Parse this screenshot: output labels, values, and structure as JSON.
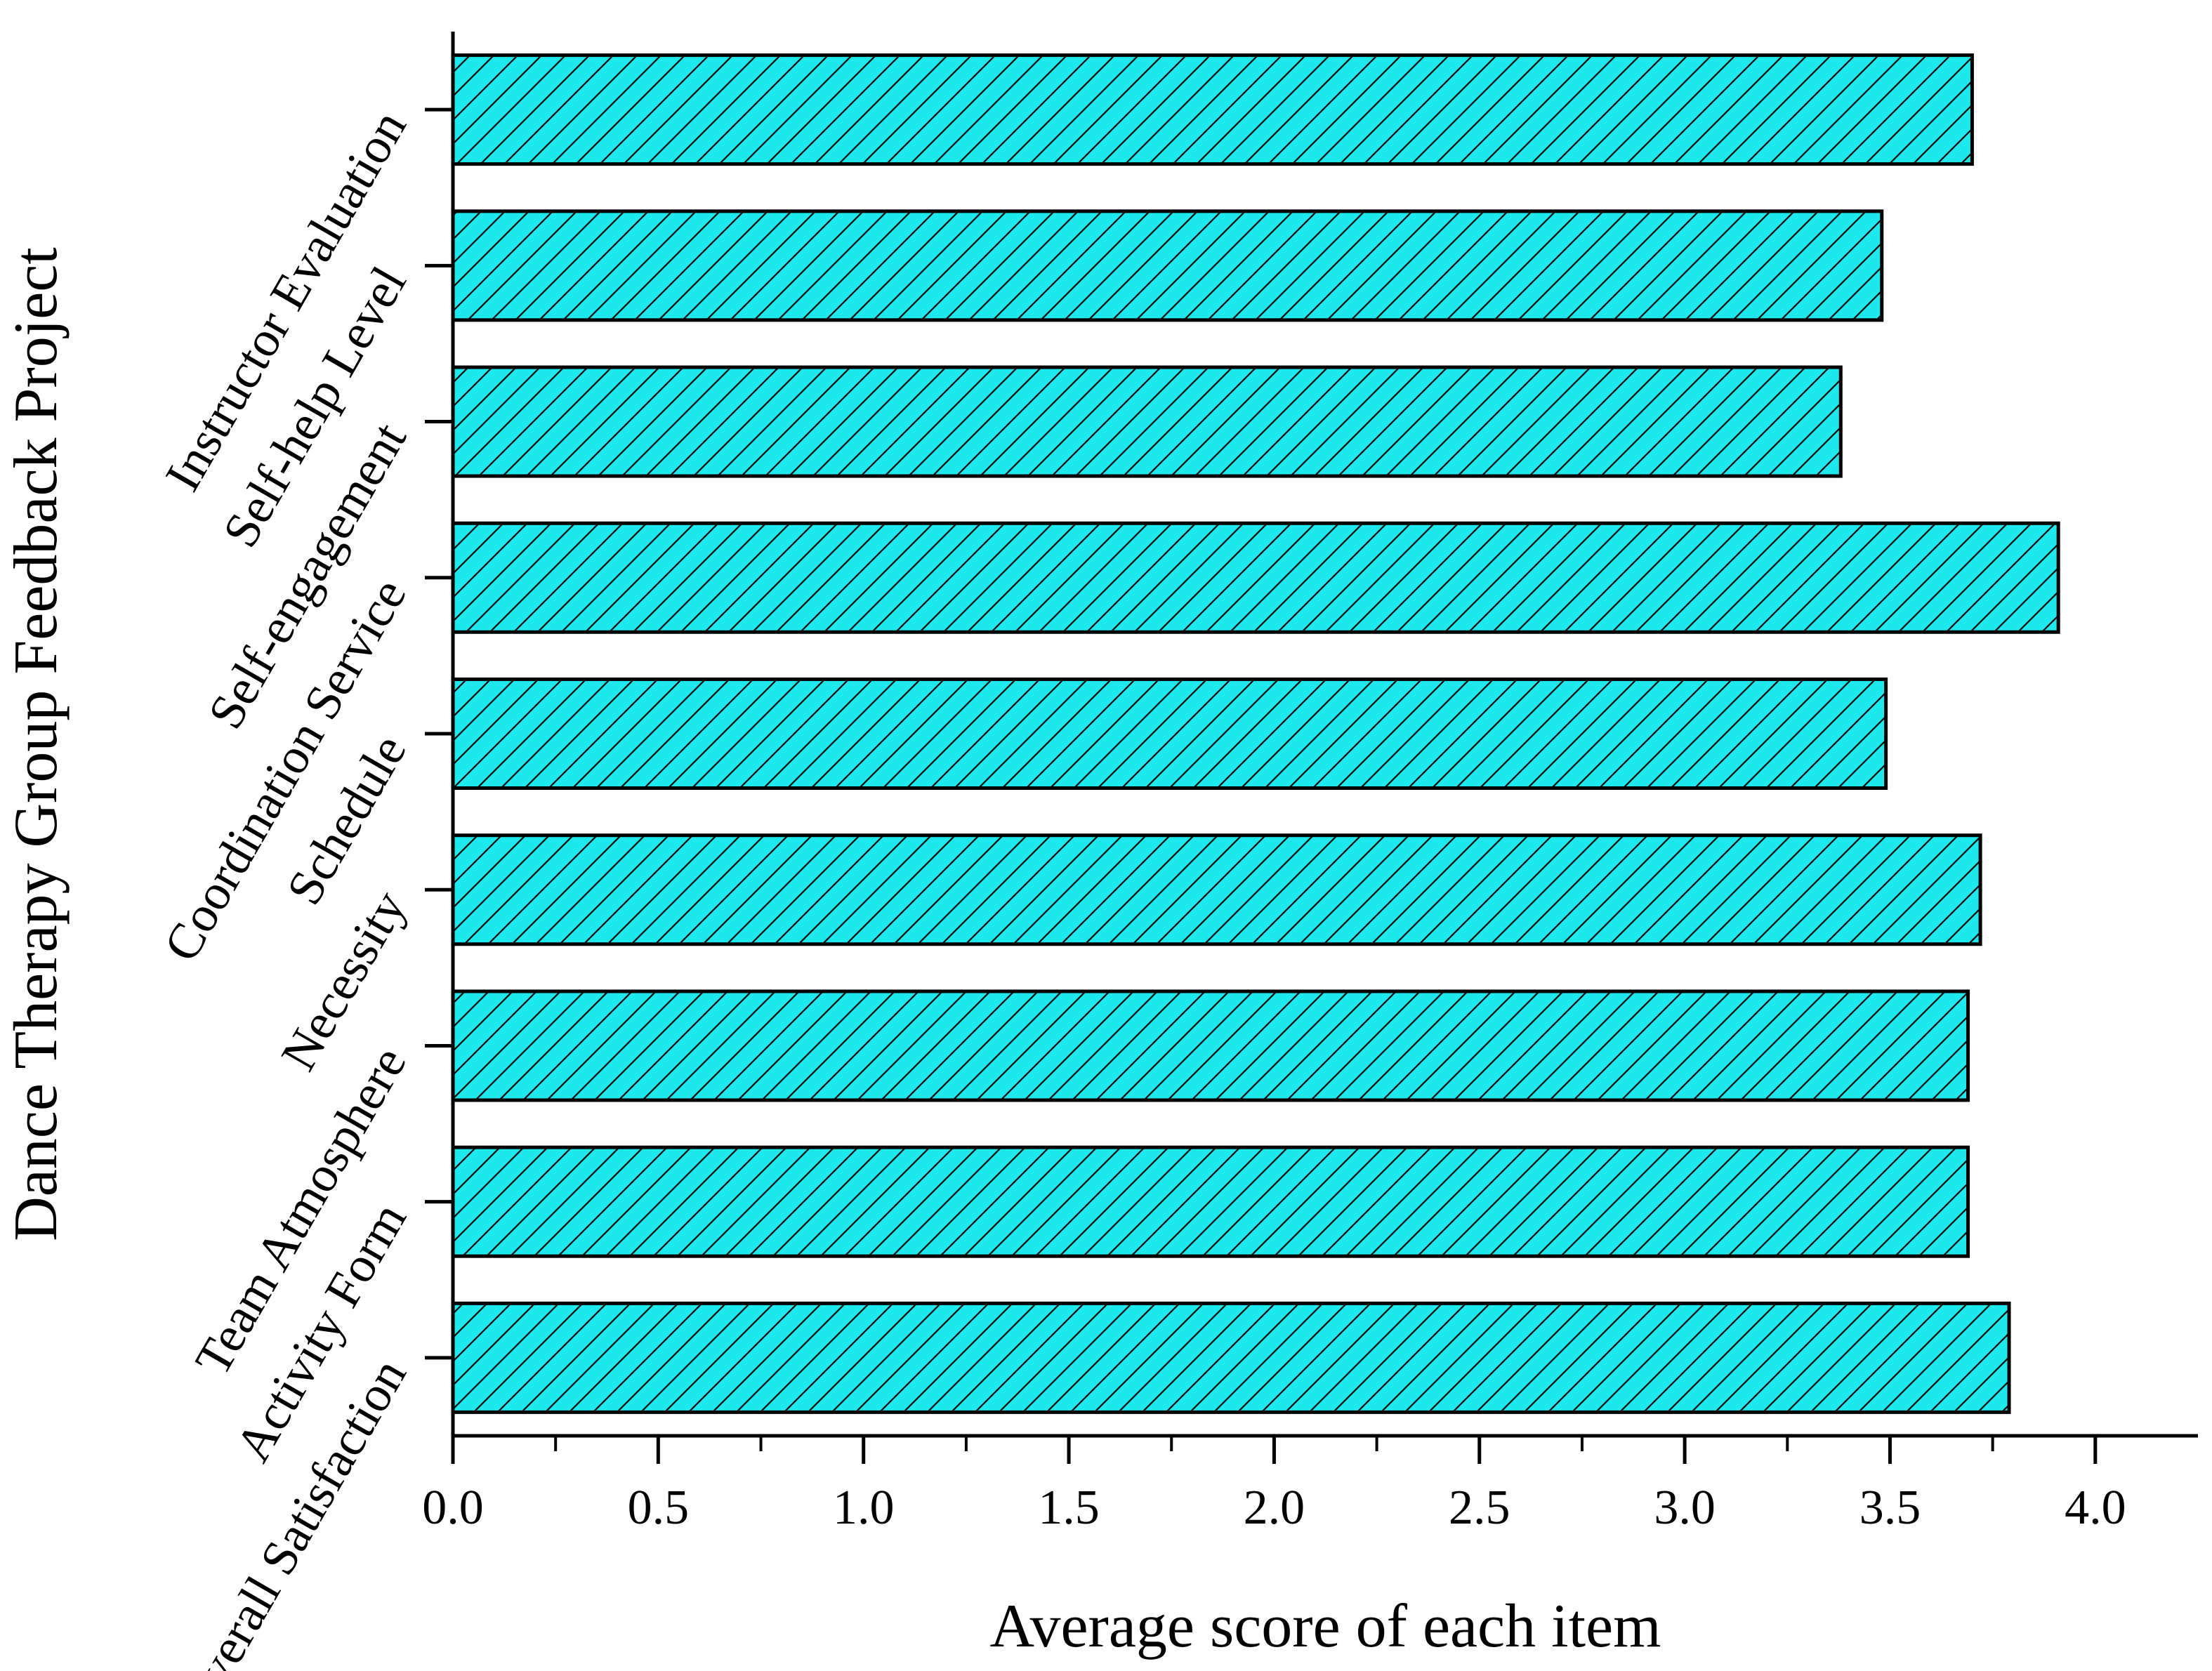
{
  "chart_data": {
    "type": "bar",
    "orientation": "horizontal",
    "categories": [
      "Instructor Evaluation",
      "Self-help Level",
      "Self-engagement",
      "Coordination Service",
      "Schedule",
      "Necessity",
      "Team Atmosphere",
      "Activity Form",
      "Overall Satisfaction"
    ],
    "values": [
      3.7,
      3.48,
      3.38,
      3.91,
      3.49,
      3.72,
      3.69,
      3.69,
      3.79
    ],
    "xlabel": "Average score of each item",
    "ylabel": "Dance Therapy Group Feedback Project",
    "xlim": [
      0,
      4.25
    ],
    "xticks": [
      "0.0",
      "0.5",
      "1.0",
      "1.5",
      "2.0",
      "2.5",
      "3.0",
      "3.5",
      "4.0"
    ],
    "grid": false,
    "bar_color": "#1de9ec",
    "bar_pattern": "diagonal-hatch",
    "edge_color": "#000000"
  }
}
